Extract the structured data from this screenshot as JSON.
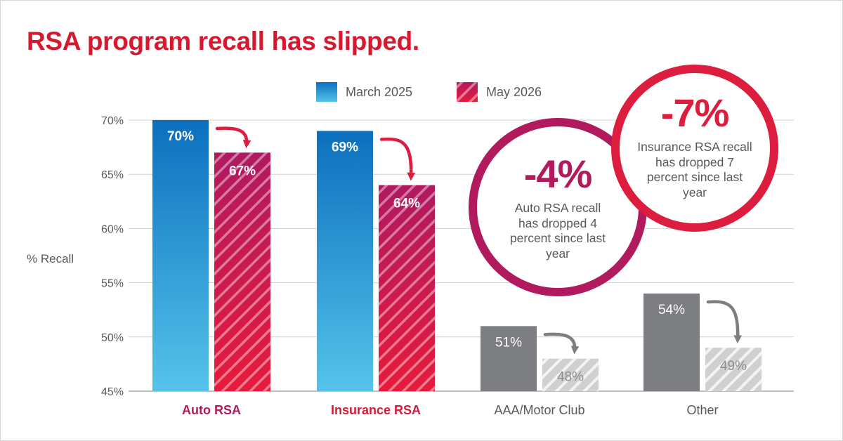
{
  "title": "RSA program recall has slipped.",
  "colors": {
    "title": "#d7192f",
    "march_bar_top": "#0c6fbe",
    "march_bar_bottom": "#55c3ea",
    "may_bar_top": "#b01960",
    "may_bar_bottom": "#e61b3b",
    "gray_bar": "#7c7e82",
    "gray_hatch": "#cfd0d1",
    "axis_text": "#58595b",
    "label_auto": "#b11a5d",
    "label_insurance": "#d61a36",
    "label_other": "#58595b",
    "callout_1": "#b11a5d",
    "callout_2": "#dd1d3d"
  },
  "chart_data": {
    "type": "bar",
    "categories": [
      "Auto RSA",
      "Insurance RSA",
      "AAA/Motor Club",
      "Other"
    ],
    "series": [
      {
        "name": "March 2025",
        "values": [
          70,
          69,
          51,
          54
        ]
      },
      {
        "name": "May 2026",
        "values": [
          67,
          64,
          48,
          49
        ]
      }
    ],
    "data_labels": [
      [
        "70%",
        "69%",
        "51%",
        "54%"
      ],
      [
        "67%",
        "64%",
        "48%",
        "49%"
      ]
    ],
    "ylabel": "% Recall",
    "ylim": [
      45,
      70
    ],
    "yticks": [
      45,
      50,
      55,
      60,
      65,
      70
    ],
    "ytick_labels": [
      "45%",
      "50%",
      "55%",
      "60%",
      "65%",
      "70%"
    ],
    "grid": true,
    "legend": "top-center"
  },
  "callouts": [
    {
      "value": "-4%",
      "text": "Auto RSA recall has dropped 4 percent since last year"
    },
    {
      "value": "-7%",
      "text": "Insurance RSA recall has dropped 7 percent since last year"
    }
  ]
}
